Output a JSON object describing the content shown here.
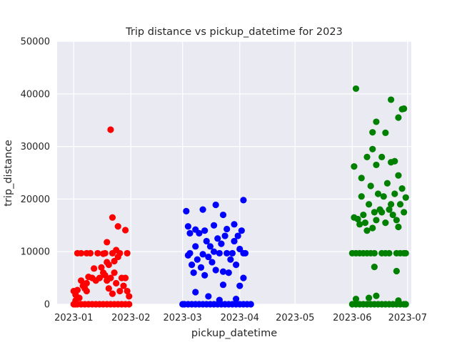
{
  "chart_data": {
    "type": "scatter",
    "title": "Trip distance vs pickup_datetime for 2023",
    "xlabel": "pickup_datetime",
    "ylabel": "trip_distance",
    "ylim": [
      0,
      50000
    ],
    "yticks": [
      0,
      10000,
      20000,
      30000,
      40000,
      50000
    ],
    "xlim": [
      "2022-12-23",
      "2023-07-03"
    ],
    "xticks": [
      "2023-01",
      "2023-02",
      "2023-03",
      "2023-04",
      "2023-05",
      "2023-06",
      "2023-07"
    ],
    "grid": true,
    "legend": "none",
    "series": [
      {
        "color": "#ff0000",
        "points": [
          [
            "2023-01-01",
            0
          ],
          [
            "2023-01-02",
            0
          ],
          [
            "2023-01-03",
            0
          ],
          [
            "2023-01-05",
            0
          ],
          [
            "2023-01-07",
            0
          ],
          [
            "2023-01-09",
            0
          ],
          [
            "2023-01-11",
            0
          ],
          [
            "2023-01-13",
            0
          ],
          [
            "2023-01-15",
            0
          ],
          [
            "2023-01-17",
            0
          ],
          [
            "2023-01-19",
            0
          ],
          [
            "2023-01-21",
            0
          ],
          [
            "2023-01-23",
            0
          ],
          [
            "2023-01-25",
            0
          ],
          [
            "2023-01-27",
            0
          ],
          [
            "2023-01-29",
            0
          ],
          [
            "2023-01-31",
            0
          ],
          [
            "2023-01-01",
            2500
          ],
          [
            "2023-01-02",
            1800
          ],
          [
            "2023-01-03",
            2700
          ],
          [
            "2023-01-02",
            700
          ],
          [
            "2023-01-04",
            1200
          ],
          [
            "2023-01-05",
            4500
          ],
          [
            "2023-01-06",
            3500
          ],
          [
            "2023-01-07",
            3000
          ],
          [
            "2023-01-08",
            4000
          ],
          [
            "2023-01-08",
            2500
          ],
          [
            "2023-01-03",
            9700
          ],
          [
            "2023-01-05",
            9700
          ],
          [
            "2023-01-08",
            9700
          ],
          [
            "2023-01-10",
            9700
          ],
          [
            "2023-01-14",
            9700
          ],
          [
            "2023-01-17",
            9600
          ],
          [
            "2023-01-18",
            9700
          ],
          [
            "2023-01-22",
            9700
          ],
          [
            "2023-01-24",
            10300
          ],
          [
            "2023-01-26",
            9700
          ],
          [
            "2023-01-30",
            9700
          ],
          [
            "2023-01-19",
            8000
          ],
          [
            "2023-01-23",
            8200
          ],
          [
            "2023-01-25",
            9000
          ],
          [
            "2023-01-09",
            5200
          ],
          [
            "2023-01-11",
            5000
          ],
          [
            "2023-01-12",
            6800
          ],
          [
            "2023-01-13",
            4500
          ],
          [
            "2023-01-15",
            5000
          ],
          [
            "2023-01-16",
            7000
          ],
          [
            "2023-01-17",
            6000
          ],
          [
            "2023-01-18",
            5500
          ],
          [
            "2023-01-19",
            4500
          ],
          [
            "2023-01-20",
            3000
          ],
          [
            "2023-01-20",
            7500
          ],
          [
            "2023-01-21",
            5000
          ],
          [
            "2023-01-22",
            2000
          ],
          [
            "2023-01-23",
            6000
          ],
          [
            "2023-01-24",
            4000
          ],
          [
            "2023-01-26",
            2500
          ],
          [
            "2023-01-27",
            5000
          ],
          [
            "2023-01-28",
            3500
          ],
          [
            "2023-01-29",
            5000
          ],
          [
            "2023-01-30",
            2500
          ],
          [
            "2023-01-31",
            1500
          ],
          [
            "2023-01-19",
            11800
          ],
          [
            "2023-01-25",
            14800
          ],
          [
            "2023-01-29",
            14100
          ],
          [
            "2023-01-22",
            16500
          ],
          [
            "2023-01-21",
            33200
          ]
        ]
      },
      {
        "color": "#0000ff",
        "points": [
          [
            "2023-03-01",
            0
          ],
          [
            "2023-03-02",
            0
          ],
          [
            "2023-03-04",
            0
          ],
          [
            "2023-03-06",
            0
          ],
          [
            "2023-03-08",
            0
          ],
          [
            "2023-03-10",
            0
          ],
          [
            "2023-03-12",
            0
          ],
          [
            "2023-03-14",
            0
          ],
          [
            "2023-03-16",
            0
          ],
          [
            "2023-03-18",
            0
          ],
          [
            "2023-03-20",
            0
          ],
          [
            "2023-03-22",
            0
          ],
          [
            "2023-03-24",
            0
          ],
          [
            "2023-03-26",
            0
          ],
          [
            "2023-03-28",
            0
          ],
          [
            "2023-03-30",
            0
          ],
          [
            "2023-04-01",
            0
          ],
          [
            "2023-04-03",
            0
          ],
          [
            "2023-04-05",
            0
          ],
          [
            "2023-04-07",
            0
          ],
          [
            "2023-03-08",
            2300
          ],
          [
            "2023-03-15",
            1500
          ],
          [
            "2023-03-21",
            800
          ],
          [
            "2023-03-30",
            1000
          ],
          [
            "2023-04-01",
            3500
          ],
          [
            "2023-03-23",
            3700
          ],
          [
            "2023-04-03",
            5000
          ],
          [
            "2023-03-04",
            9300
          ],
          [
            "2023-03-05",
            9700
          ],
          [
            "2023-03-06",
            7500
          ],
          [
            "2023-03-07",
            6000
          ],
          [
            "2023-03-08",
            11000
          ],
          [
            "2023-03-09",
            8500
          ],
          [
            "2023-03-10",
            13500
          ],
          [
            "2023-03-11",
            7000
          ],
          [
            "2023-03-12",
            9500
          ],
          [
            "2023-03-13",
            5500
          ],
          [
            "2023-03-14",
            12000
          ],
          [
            "2023-03-15",
            9000
          ],
          [
            "2023-03-16",
            11000
          ],
          [
            "2023-03-17",
            8000
          ],
          [
            "2023-03-18",
            10000
          ],
          [
            "2023-03-19",
            6500
          ],
          [
            "2023-03-20",
            12500
          ],
          [
            "2023-03-21",
            9700
          ],
          [
            "2023-03-22",
            11500
          ],
          [
            "2023-03-23",
            6200
          ],
          [
            "2023-03-24",
            13000
          ],
          [
            "2023-03-25",
            9700
          ],
          [
            "2023-03-26",
            6000
          ],
          [
            "2023-03-27",
            8500
          ],
          [
            "2023-03-28",
            9700
          ],
          [
            "2023-03-29",
            12000
          ],
          [
            "2023-03-30",
            7500
          ],
          [
            "2023-03-31",
            13000
          ],
          [
            "2023-04-01",
            10500
          ],
          [
            "2023-04-02",
            14000
          ],
          [
            "2023-04-03",
            9700
          ],
          [
            "2023-04-04",
            9700
          ],
          [
            "2023-03-04",
            14800
          ],
          [
            "2023-03-05",
            13500
          ],
          [
            "2023-03-08",
            14200
          ],
          [
            "2023-03-13",
            14000
          ],
          [
            "2023-03-18",
            15000
          ],
          [
            "2023-03-25",
            14300
          ],
          [
            "2023-03-29",
            15200
          ],
          [
            "2023-03-03",
            17700
          ],
          [
            "2023-03-12",
            18000
          ],
          [
            "2023-03-19",
            18900
          ],
          [
            "2023-03-23",
            17000
          ],
          [
            "2023-04-03",
            19800
          ]
        ]
      },
      {
        "color": "#008000",
        "points": [
          [
            "2023-06-01",
            0
          ],
          [
            "2023-06-03",
            0
          ],
          [
            "2023-06-05",
            0
          ],
          [
            "2023-06-07",
            0
          ],
          [
            "2023-06-09",
            0
          ],
          [
            "2023-06-11",
            0
          ],
          [
            "2023-06-13",
            0
          ],
          [
            "2023-06-15",
            0
          ],
          [
            "2023-06-17",
            0
          ],
          [
            "2023-06-19",
            0
          ],
          [
            "2023-06-21",
            0
          ],
          [
            "2023-06-23",
            0
          ],
          [
            "2023-06-25",
            0
          ],
          [
            "2023-06-27",
            0
          ],
          [
            "2023-06-29",
            0
          ],
          [
            "2023-06-30",
            0
          ],
          [
            "2023-06-03",
            1000
          ],
          [
            "2023-06-10",
            1200
          ],
          [
            "2023-06-14",
            1600
          ],
          [
            "2023-06-26",
            700
          ],
          [
            "2023-06-01",
            9700
          ],
          [
            "2023-06-03",
            9700
          ],
          [
            "2023-06-05",
            9700
          ],
          [
            "2023-06-07",
            9700
          ],
          [
            "2023-06-09",
            9700
          ],
          [
            "2023-06-11",
            9700
          ],
          [
            "2023-06-13",
            9700
          ],
          [
            "2023-06-17",
            9700
          ],
          [
            "2023-06-19",
            9700
          ],
          [
            "2023-06-21",
            9700
          ],
          [
            "2023-06-25",
            9700
          ],
          [
            "2023-06-27",
            9700
          ],
          [
            "2023-06-29",
            9700
          ],
          [
            "2023-06-30",
            9700
          ],
          [
            "2023-06-13",
            7100
          ],
          [
            "2023-06-25",
            6300
          ],
          [
            "2023-06-02",
            16500
          ],
          [
            "2023-06-04",
            16200
          ],
          [
            "2023-06-05",
            15200
          ],
          [
            "2023-06-06",
            20500
          ],
          [
            "2023-06-07",
            17000
          ],
          [
            "2023-06-08",
            15500
          ],
          [
            "2023-06-09",
            14000
          ],
          [
            "2023-06-10",
            19000
          ],
          [
            "2023-06-11",
            22500
          ],
          [
            "2023-06-12",
            14500
          ],
          [
            "2023-06-13",
            17500
          ],
          [
            "2023-06-14",
            16000
          ],
          [
            "2023-06-15",
            21000
          ],
          [
            "2023-06-16",
            18000
          ],
          [
            "2023-06-17",
            17500
          ],
          [
            "2023-06-18",
            20500
          ],
          [
            "2023-06-19",
            15500
          ],
          [
            "2023-06-20",
            23000
          ],
          [
            "2023-06-21",
            18000
          ],
          [
            "2023-06-22",
            19000
          ],
          [
            "2023-06-23",
            17000
          ],
          [
            "2023-06-24",
            21000
          ],
          [
            "2023-06-25",
            16000
          ],
          [
            "2023-06-26",
            14700
          ],
          [
            "2023-06-27",
            19000
          ],
          [
            "2023-06-28",
            22000
          ],
          [
            "2023-06-29",
            17500
          ],
          [
            "2023-06-30",
            20300
          ],
          [
            "2023-06-02",
            26200
          ],
          [
            "2023-06-06",
            24000
          ],
          [
            "2023-06-09",
            28000
          ],
          [
            "2023-06-12",
            29500
          ],
          [
            "2023-06-14",
            26500
          ],
          [
            "2023-06-17",
            28000
          ],
          [
            "2023-06-22",
            27000
          ],
          [
            "2023-06-24",
            27200
          ],
          [
            "2023-06-26",
            24500
          ],
          [
            "2023-06-03",
            41000
          ],
          [
            "2023-06-12",
            32700
          ],
          [
            "2023-06-14",
            34700
          ],
          [
            "2023-06-19",
            32600
          ],
          [
            "2023-06-22",
            38900
          ],
          [
            "2023-06-26",
            35500
          ],
          [
            "2023-06-28",
            37100
          ],
          [
            "2023-06-29",
            37200
          ]
        ]
      }
    ]
  }
}
